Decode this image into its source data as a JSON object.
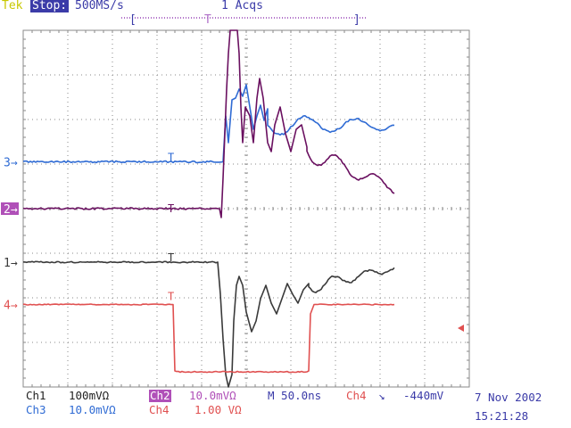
{
  "header": {
    "brand": "Tek",
    "run_state": "Stop:",
    "sample_rate": "500MS/s",
    "acquisitions": "1 Acqs",
    "trigger_bracket_left": "[",
    "trigger_marker": "T",
    "trigger_bracket_right": "]"
  },
  "graticule": {
    "divisions_x": 10,
    "divisions_y": 8,
    "border_color": "#8a8a8a",
    "grid_color": "#8a8a8a"
  },
  "channels": [
    {
      "id": "ch3",
      "marker": "3",
      "color": "#2f6bd4",
      "label": "Ch3",
      "scale": "10.0mVΩ",
      "level": 5.05
    },
    {
      "id": "ch2",
      "marker": "2",
      "color": "#6a1060",
      "label": "Ch2",
      "scale": "10.0mVΩ",
      "level": 4.0
    },
    {
      "id": "ch1",
      "marker": "1",
      "color": "#3a3a3a",
      "label": "Ch1",
      "scale": "100mVΩ",
      "level": 2.8
    },
    {
      "id": "ch4",
      "marker": "4",
      "color": "#e05050",
      "label": "Ch4",
      "scale": "1.00 VΩ",
      "level": 1.85
    }
  ],
  "trigger_level_arrow_color": "#e05050",
  "readout": {
    "ch1_label": "Ch1",
    "ch1_scale": "100mVΩ",
    "ch2_label": "Ch2",
    "ch2_scale": "10.0mVΩ",
    "timebase": "M 50.0ns",
    "trigger_source": "Ch4",
    "trigger_slope": "↘",
    "trigger_level": "-440mV",
    "ch3_label": "Ch3",
    "ch3_scale": "10.0mVΩ",
    "ch4_label": "Ch4",
    "ch4_scale": "1.00 VΩ",
    "date": "7 Nov 2002",
    "time": "15:21:28"
  }
}
